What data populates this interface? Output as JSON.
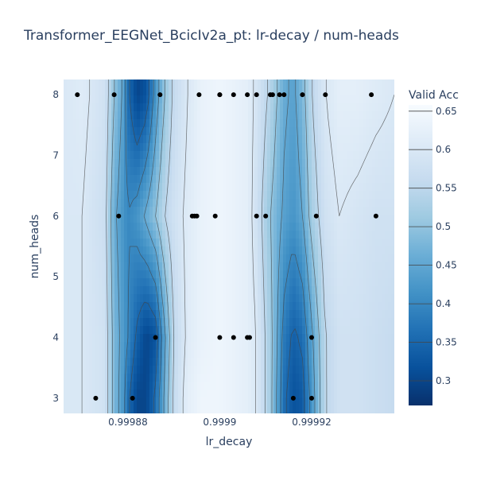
{
  "chart_data": {
    "type": "contour",
    "title": "Transformer_EEGNet_BcicIv2a_pt: lr-decay / num-heads",
    "xlabel": "lr_decay",
    "ylabel": "num_heads",
    "xlim": [
      0.999866,
      0.999938
    ],
    "ylim": [
      2.75,
      8.25
    ],
    "x_ticks": [
      {
        "value": 0.99988,
        "label": "0.99988"
      },
      {
        "value": 0.9999,
        "label": "0.9999"
      },
      {
        "value": 0.99992,
        "label": "0.99992"
      }
    ],
    "y_ticks": [
      {
        "value": 3,
        "label": "3"
      },
      {
        "value": 4,
        "label": "4"
      },
      {
        "value": 5,
        "label": "5"
      },
      {
        "value": 6,
        "label": "6"
      },
      {
        "value": 7,
        "label": "7"
      },
      {
        "value": 8,
        "label": "8"
      }
    ],
    "colorbar": {
      "title": "Valid Acc",
      "range": [
        0.268,
        0.658
      ],
      "ticks": [
        {
          "value": 0.3,
          "label": "0.3"
        },
        {
          "value": 0.35,
          "label": "0.35"
        },
        {
          "value": 0.4,
          "label": "0.4"
        },
        {
          "value": 0.45,
          "label": "0.45"
        },
        {
          "value": 0.5,
          "label": "0.5"
        },
        {
          "value": 0.55,
          "label": "0.55"
        },
        {
          "value": 0.6,
          "label": "0.6"
        },
        {
          "value": 0.65,
          "label": "0.65"
        }
      ],
      "colorscale": [
        "#08306b",
        "#08519c",
        "#2171b5",
        "#4292c6",
        "#6baed6",
        "#9ecae1",
        "#c6dbef",
        "#deebf7",
        "#f7fbff"
      ]
    },
    "contour_levels": [
      0.3,
      0.35,
      0.4,
      0.45,
      0.5,
      0.55,
      0.6,
      0.65
    ],
    "value_profile": {
      "x": [
        0.999866,
        0.99987,
        0.999875,
        0.999877,
        0.999879,
        0.99988,
        0.999882,
        0.999884,
        0.999886,
        0.999888,
        0.99989,
        0.999893,
        0.999896,
        0.9999,
        0.999903,
        0.999906,
        0.999908,
        0.999911,
        0.999914,
        0.999916,
        0.999918,
        0.99992,
        0.999923,
        0.999926,
        0.99993,
        0.999934,
        0.999938
      ],
      "y3": [
        0.6,
        0.6,
        0.58,
        0.48,
        0.42,
        0.36,
        0.3,
        0.3,
        0.36,
        0.46,
        0.56,
        0.62,
        0.64,
        0.64,
        0.63,
        0.62,
        0.6,
        0.52,
        0.36,
        0.32,
        0.33,
        0.42,
        0.55,
        0.58,
        0.58,
        0.57,
        0.56
      ],
      "y4": [
        0.6,
        0.6,
        0.58,
        0.48,
        0.43,
        0.4,
        0.34,
        0.3,
        0.32,
        0.44,
        0.55,
        0.61,
        0.63,
        0.64,
        0.63,
        0.62,
        0.6,
        0.52,
        0.38,
        0.34,
        0.36,
        0.44,
        0.55,
        0.58,
        0.58,
        0.57,
        0.56
      ],
      "y6": [
        0.6,
        0.6,
        0.57,
        0.46,
        0.42,
        0.4,
        0.42,
        0.46,
        0.5,
        0.55,
        0.58,
        0.61,
        0.63,
        0.64,
        0.63,
        0.62,
        0.58,
        0.5,
        0.44,
        0.42,
        0.45,
        0.52,
        0.58,
        0.6,
        0.59,
        0.58,
        0.58
      ],
      "y8": [
        0.6,
        0.61,
        0.58,
        0.5,
        0.44,
        0.36,
        0.3,
        0.32,
        0.42,
        0.5,
        0.56,
        0.6,
        0.63,
        0.64,
        0.63,
        0.62,
        0.59,
        0.54,
        0.46,
        0.44,
        0.48,
        0.55,
        0.6,
        0.62,
        0.62,
        0.61,
        0.6
      ]
    },
    "points": [
      {
        "x": 0.999869,
        "y": 8
      },
      {
        "x": 0.999877,
        "y": 8
      },
      {
        "x": 0.999887,
        "y": 8
      },
      {
        "x": 0.9998955,
        "y": 8
      },
      {
        "x": 0.9999,
        "y": 8
      },
      {
        "x": 0.9999,
        "y": 8
      },
      {
        "x": 0.999903,
        "y": 8
      },
      {
        "x": 0.999906,
        "y": 8
      },
      {
        "x": 0.999908,
        "y": 8
      },
      {
        "x": 0.999911,
        "y": 8
      },
      {
        "x": 0.9999115,
        "y": 8
      },
      {
        "x": 0.999913,
        "y": 8
      },
      {
        "x": 0.999914,
        "y": 8
      },
      {
        "x": 0.999918,
        "y": 8
      },
      {
        "x": 0.999923,
        "y": 8
      },
      {
        "x": 0.999933,
        "y": 8
      },
      {
        "x": 0.999878,
        "y": 6
      },
      {
        "x": 0.999894,
        "y": 6
      },
      {
        "x": 0.9998945,
        "y": 6
      },
      {
        "x": 0.999895,
        "y": 6
      },
      {
        "x": 0.999899,
        "y": 6
      },
      {
        "x": 0.999908,
        "y": 6
      },
      {
        "x": 0.99991,
        "y": 6
      },
      {
        "x": 0.999921,
        "y": 6
      },
      {
        "x": 0.999934,
        "y": 6
      },
      {
        "x": 0.999886,
        "y": 4
      },
      {
        "x": 0.9999,
        "y": 4
      },
      {
        "x": 0.999903,
        "y": 4
      },
      {
        "x": 0.999906,
        "y": 4
      },
      {
        "x": 0.9999065,
        "y": 4
      },
      {
        "x": 0.99992,
        "y": 4
      },
      {
        "x": 0.999873,
        "y": 3
      },
      {
        "x": 0.999881,
        "y": 3
      },
      {
        "x": 0.999916,
        "y": 3
      },
      {
        "x": 0.99992,
        "y": 3
      }
    ]
  }
}
